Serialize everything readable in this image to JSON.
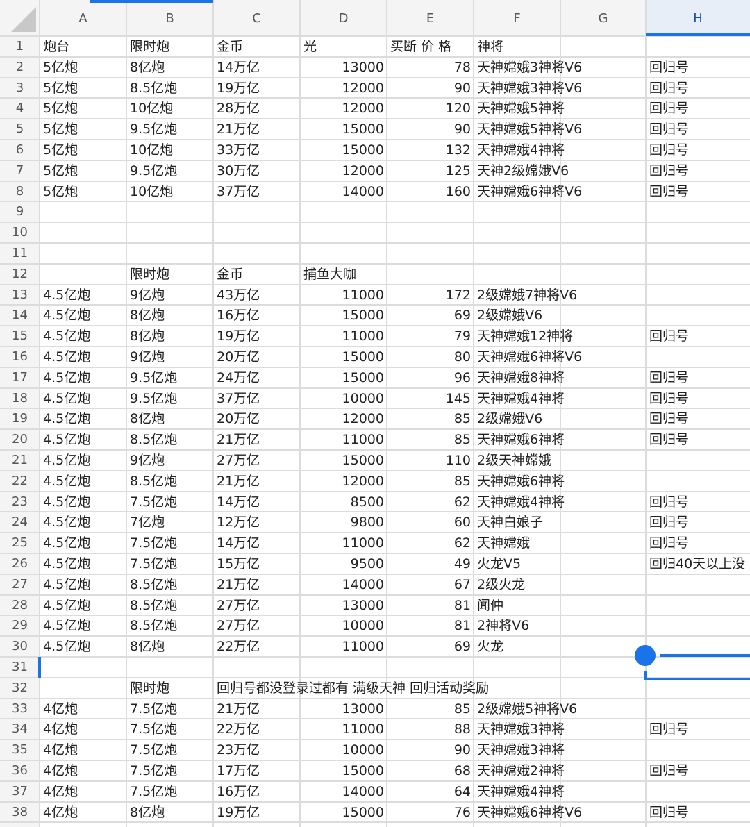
{
  "columns": [
    "A",
    "B",
    "C",
    "D",
    "E",
    "F",
    "G",
    "H"
  ],
  "rows": [
    {
      "num": "1",
      "cells": {
        "A": "炮台",
        "B": "限时炮",
        "C": "金币",
        "D": "光",
        "E": "买断 价 格",
        "F": "神将"
      }
    },
    {
      "num": "2",
      "cells": {
        "A": "5亿炮",
        "B": "8亿炮",
        "C": "14万亿",
        "D": 13000,
        "E": 78,
        "F": "天神嫦娥3神将V6",
        "H": "回归号"
      }
    },
    {
      "num": "3",
      "cells": {
        "A": "5亿炮",
        "B": "8.5亿炮",
        "C": "19万亿",
        "D": 12000,
        "E": 90,
        "F": "天神嫦娥3神将V6",
        "H": "回归号"
      }
    },
    {
      "num": "4",
      "cells": {
        "A": "5亿炮",
        "B": "10亿炮",
        "C": "28万亿",
        "D": 12000,
        "E": 120,
        "F": "天神嫦娥5神将",
        "H": "回归号"
      }
    },
    {
      "num": "5",
      "cells": {
        "A": "5亿炮",
        "B": "9.5亿炮",
        "C": "21万亿",
        "D": 15000,
        "E": 90,
        "F": "天神嫦娥5神将V6",
        "H": "回归号"
      }
    },
    {
      "num": "6",
      "cells": {
        "A": "5亿炮",
        "B": "10亿炮",
        "C": "33万亿",
        "D": 15000,
        "E": 132,
        "F": "天神嫦娥4神将",
        "H": "回归号"
      }
    },
    {
      "num": "7",
      "cells": {
        "A": "5亿炮",
        "B": "9.5亿炮",
        "C": "30万亿",
        "D": 12000,
        "E": 125,
        "F": "天神2级嫦娥V6",
        "H": "回归号"
      }
    },
    {
      "num": "8",
      "cells": {
        "A": "5亿炮",
        "B": "10亿炮",
        "C": "37万亿",
        "D": 14000,
        "E": 160,
        "F": "天神嫦娥6神将V6",
        "H": "回归号"
      }
    },
    {
      "num": "9",
      "cells": {}
    },
    {
      "num": "10",
      "cells": {}
    },
    {
      "num": "11",
      "cells": {}
    },
    {
      "num": "12",
      "cells": {
        "B": "限时炮",
        "C": "金币",
        "D": "捕鱼大咖"
      }
    },
    {
      "num": "13",
      "cells": {
        "A": "4.5亿炮",
        "B": "9亿炮",
        "C": "43万亿",
        "D": 11000,
        "E": 172,
        "F": "2级嫦娥7神将V6"
      }
    },
    {
      "num": "14",
      "cells": {
        "A": "4.5亿炮",
        "B": "8亿炮",
        "C": "16万亿",
        "D": 15000,
        "E": 69,
        "F": "2级嫦娥V6"
      }
    },
    {
      "num": "15",
      "cells": {
        "A": "4.5亿炮",
        "B": "8亿炮",
        "C": "19万亿",
        "D": 11000,
        "E": 79,
        "F": "天神嫦娥12神将",
        "H": "回归号"
      }
    },
    {
      "num": "16",
      "cells": {
        "A": "4.5亿炮",
        "B": "9亿炮",
        "C": "20万亿",
        "D": 15000,
        "E": 80,
        "F": "天神嫦娥6神将V6"
      }
    },
    {
      "num": "17",
      "cells": {
        "A": "4.5亿炮",
        "B": "9.5亿炮",
        "C": "24万亿",
        "D": 15000,
        "E": 96,
        "F": "天神嫦娥8神将",
        "H": "回归号"
      }
    },
    {
      "num": "18",
      "cells": {
        "A": "4.5亿炮",
        "B": "9.5亿炮",
        "C": "37万亿",
        "D": 10000,
        "E": 145,
        "F": "天神嫦娥4神将",
        "H": "回归号"
      }
    },
    {
      "num": "19",
      "cells": {
        "A": "4.5亿炮",
        "B": "8亿炮",
        "C": "20万亿",
        "D": 12000,
        "E": 85,
        "F": "2级嫦娥V6",
        "H": "回归号"
      }
    },
    {
      "num": "20",
      "cells": {
        "A": "4.5亿炮",
        "B": "8.5亿炮",
        "C": "21万亿",
        "D": 11000,
        "E": 85,
        "F": "天神嫦娥6神将",
        "H": "回归号"
      }
    },
    {
      "num": "21",
      "cells": {
        "A": "4.5亿炮",
        "B": "9亿炮",
        "C": "27万亿",
        "D": 15000,
        "E": 110,
        "F": "2级天神嫦娥"
      }
    },
    {
      "num": "22",
      "cells": {
        "A": "4.5亿炮",
        "B": "8.5亿炮",
        "C": "21万亿",
        "D": 12000,
        "E": 85,
        "F": "天神嫦娥6神将"
      }
    },
    {
      "num": "23",
      "cells": {
        "A": "4.5亿炮",
        "B": "7.5亿炮",
        "C": "14万亿",
        "D": 8500,
        "E": 62,
        "F": "天神嫦娥4神将",
        "H": "回归号"
      }
    },
    {
      "num": "24",
      "cells": {
        "A": "4.5亿炮",
        "B": "7亿炮",
        "C": "12万亿",
        "D": 9800,
        "E": 60,
        "F": "天神白娘子",
        "H": "回归号"
      }
    },
    {
      "num": "25",
      "cells": {
        "A": "4.5亿炮",
        "B": "7.5亿炮",
        "C": "14万亿",
        "D": 11000,
        "E": 62,
        "F": "天神嫦娥",
        "H": "回归号"
      }
    },
    {
      "num": "26",
      "cells": {
        "A": "4.5亿炮",
        "B": "7.5亿炮",
        "C": "15万亿",
        "D": 9500,
        "E": 49,
        "F": "火龙V5",
        "H": "回归40天以上没"
      }
    },
    {
      "num": "27",
      "cells": {
        "A": "4.5亿炮",
        "B": "8.5亿炮",
        "C": "21万亿",
        "D": 14000,
        "E": 67,
        "F": "2级火龙"
      }
    },
    {
      "num": "28",
      "cells": {
        "A": "4.5亿炮",
        "B": "8.5亿炮",
        "C": "27万亿",
        "D": 13000,
        "E": 81,
        "F": "闻仲"
      }
    },
    {
      "num": "29",
      "cells": {
        "A": "4.5亿炮",
        "B": "8.5亿炮",
        "C": "27万亿",
        "D": 10000,
        "E": 81,
        "F": "2神将V6"
      }
    },
    {
      "num": "30",
      "cells": {
        "A": "4.5亿炮",
        "B": "8亿炮",
        "C": "22万亿",
        "D": 11000,
        "E": 69,
        "F": "火龙"
      }
    },
    {
      "num": "31",
      "cells": {}
    },
    {
      "num": "32",
      "cells": {
        "B": "限时炮",
        "C": "回归号都没登录过都有 满级天神 回归活动奖励"
      }
    },
    {
      "num": "33",
      "cells": {
        "A": "4亿炮",
        "B": "7.5亿炮",
        "C": "21万亿",
        "D": 13000,
        "E": 85,
        "F": "2级嫦娥5神将V6"
      }
    },
    {
      "num": "34",
      "cells": {
        "A": "4亿炮",
        "B": "7.5亿炮",
        "C": "22万亿",
        "D": 11000,
        "E": 88,
        "F": "天神嫦娥3神将",
        "H": "回归号"
      }
    },
    {
      "num": "35",
      "cells": {
        "A": "4亿炮",
        "B": "7.5亿炮",
        "C": "23万亿",
        "D": 10000,
        "E": 90,
        "F": "天神嫦娥3神将"
      }
    },
    {
      "num": "36",
      "cells": {
        "A": "4亿炮",
        "B": "7.5亿炮",
        "C": "17万亿",
        "D": 15000,
        "E": 68,
        "F": "天神嫦娥2神将",
        "H": "回归号"
      }
    },
    {
      "num": "37",
      "cells": {
        "A": "4亿炮",
        "B": "7.5亿炮",
        "C": "16万亿",
        "D": 14000,
        "E": 64,
        "F": "天神嫦娥4神将"
      }
    },
    {
      "num": "38",
      "cells": {
        "A": "4亿炮",
        "B": "8亿炮",
        "C": "19万亿",
        "D": 15000,
        "E": 76,
        "F": "天神嫦娥6神将V6",
        "H": "回归号"
      }
    }
  ]
}
